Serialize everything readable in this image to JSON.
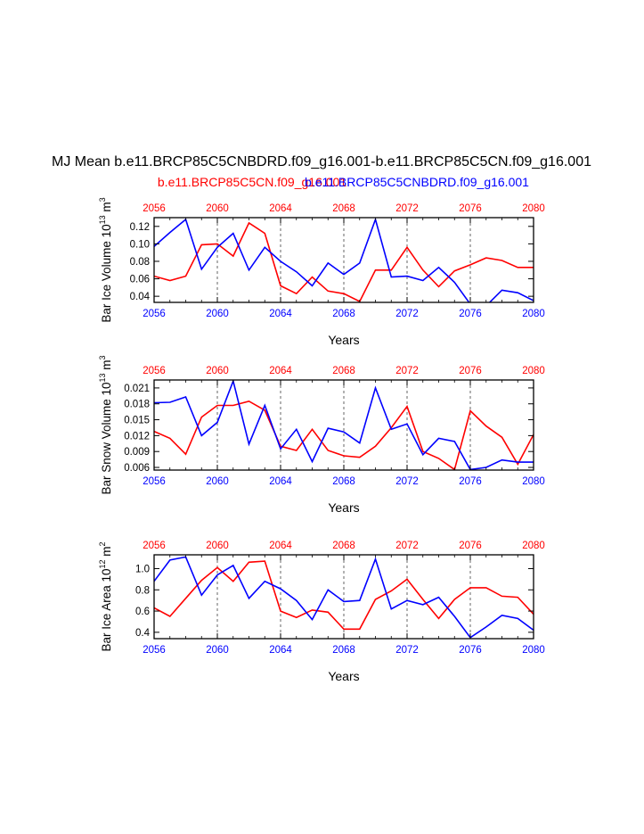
{
  "figure": {
    "title": "MJ Mean b.e11.BRCP85C5CNBDRD.f09_g16.001-b.e11.BRCP85C5CN.f09_g16.001",
    "subtitle_red": "b.e11.BRCP85C5CN.f09_g16.001",
    "subtitle_blue": "b.e11.BRCP85C5CNBDRD.f09_g16.001",
    "colors": {
      "red": "#ff0000",
      "blue": "#0000ff",
      "axis": "#000000",
      "grid": "#555555"
    }
  },
  "chart_data": [
    {
      "type": "line",
      "ylabel": {
        "text": "Bar Ice Volume 10",
        "sup": "13",
        "unit": " m",
        "unit_sup": "3"
      },
      "xlabel": "Years",
      "x_top_ticks": [
        "2056",
        "2060",
        "2064",
        "2068",
        "2072",
        "2076",
        "2080"
      ],
      "x_bottom_ticks": [
        "2056",
        "2060",
        "2064",
        "2068",
        "2072",
        "2076",
        "2080"
      ],
      "xlim": [
        2056,
        2080
      ],
      "ylim": [
        0.033,
        0.13
      ],
      "yticks": [
        0.04,
        0.06,
        0.08,
        0.1,
        0.12
      ],
      "ytick_labels": [
        "0.04",
        "0.06",
        "0.08",
        "0.10",
        "0.12"
      ],
      "grid_x": [
        2060,
        2064,
        2068,
        2072,
        2076
      ],
      "x": [
        2056,
        2057,
        2058,
        2059,
        2060,
        2061,
        2062,
        2063,
        2064,
        2065,
        2066,
        2067,
        2068,
        2069,
        2070,
        2071,
        2072,
        2073,
        2074,
        2075,
        2076,
        2077,
        2078,
        2079,
        2080
      ],
      "series": [
        {
          "name": "b.e11.BRCP85C5CN.f09_g16.001",
          "color": "red",
          "values": [
            0.063,
            0.058,
            0.063,
            0.099,
            0.1,
            0.086,
            0.124,
            0.112,
            0.052,
            0.043,
            0.062,
            0.046,
            0.043,
            0.034,
            0.07,
            0.07,
            0.096,
            0.07,
            0.051,
            0.069,
            0.076,
            0.084,
            0.081,
            0.073,
            0.073
          ]
        },
        {
          "name": "b.e11.BRCP85C5CNBDRD.f09_g16.001",
          "color": "blue",
          "values": [
            0.097,
            0.113,
            0.128,
            0.071,
            0.096,
            0.112,
            0.07,
            0.096,
            0.08,
            0.068,
            0.052,
            0.078,
            0.065,
            0.078,
            0.128,
            0.062,
            0.063,
            0.058,
            0.073,
            0.056,
            0.031,
            0.029,
            0.047,
            0.044,
            0.035
          ]
        }
      ]
    },
    {
      "type": "line",
      "ylabel": {
        "text": "Bar Snow Volume 10",
        "sup": "13",
        "unit": " m",
        "unit_sup": "3"
      },
      "xlabel": "Years",
      "x_top_ticks": [
        "2056",
        "2060",
        "2064",
        "2068",
        "2072",
        "2076",
        "2080"
      ],
      "x_bottom_ticks": [
        "2056",
        "2060",
        "2064",
        "2068",
        "2072",
        "2076",
        "2080"
      ],
      "xlim": [
        2056,
        2080
      ],
      "ylim": [
        0.0055,
        0.0225
      ],
      "yticks": [
        0.006,
        0.009,
        0.012,
        0.015,
        0.018,
        0.021
      ],
      "ytick_labels": [
        "0.006",
        "0.009",
        "0.012",
        "0.015",
        "0.018",
        "0.021"
      ],
      "grid_x": [
        2060,
        2064,
        2068,
        2072,
        2076
      ],
      "x": [
        2056,
        2057,
        2058,
        2059,
        2060,
        2061,
        2062,
        2063,
        2064,
        2065,
        2066,
        2067,
        2068,
        2069,
        2070,
        2071,
        2072,
        2073,
        2074,
        2075,
        2076,
        2077,
        2078,
        2079,
        2080
      ],
      "series": [
        {
          "name": "b.e11.BRCP85C5CN.f09_g16.001",
          "color": "red",
          "values": [
            0.0128,
            0.0115,
            0.0085,
            0.0155,
            0.0177,
            0.0177,
            0.0185,
            0.0168,
            0.01,
            0.0092,
            0.0132,
            0.0092,
            0.0082,
            0.0079,
            0.01,
            0.0135,
            0.0175,
            0.009,
            0.0077,
            0.0056,
            0.0167,
            0.0138,
            0.0117,
            0.0066,
            0.0122
          ]
        },
        {
          "name": "b.e11.BRCP85C5CNBDRD.f09_g16.001",
          "color": "blue",
          "values": [
            0.0182,
            0.0183,
            0.0193,
            0.012,
            0.0145,
            0.0223,
            0.0104,
            0.0177,
            0.0095,
            0.0132,
            0.0071,
            0.0134,
            0.0127,
            0.0106,
            0.021,
            0.0132,
            0.0142,
            0.0084,
            0.0115,
            0.0109,
            0.0056,
            0.006,
            0.0074,
            0.007,
            0.007
          ]
        }
      ]
    },
    {
      "type": "line",
      "ylabel": {
        "text": "Bar Ice Area 10",
        "sup": "12",
        "unit": " m",
        "unit_sup": "2"
      },
      "xlabel": "Years",
      "x_top_ticks": [
        "2056",
        "2060",
        "2064",
        "2068",
        "2072",
        "2076",
        "2080"
      ],
      "x_bottom_ticks": [
        "2056",
        "2060",
        "2064",
        "2068",
        "2072",
        "2076",
        "2080"
      ],
      "xlim": [
        2056,
        2080
      ],
      "ylim": [
        0.34,
        1.13
      ],
      "yticks": [
        0.4,
        0.6,
        0.8,
        1.0
      ],
      "ytick_labels": [
        "0.4",
        "0.6",
        "0.8",
        "1.0"
      ],
      "grid_x": [
        2060,
        2064,
        2068,
        2072,
        2076
      ],
      "x": [
        2056,
        2057,
        2058,
        2059,
        2060,
        2061,
        2062,
        2063,
        2064,
        2065,
        2066,
        2067,
        2068,
        2069,
        2070,
        2071,
        2072,
        2073,
        2074,
        2075,
        2076,
        2077,
        2078,
        2079,
        2080
      ],
      "series": [
        {
          "name": "b.e11.BRCP85C5CN.f09_g16.001",
          "color": "red",
          "values": [
            0.63,
            0.55,
            0.72,
            0.89,
            1.01,
            0.88,
            1.06,
            1.07,
            0.6,
            0.54,
            0.61,
            0.59,
            0.43,
            0.43,
            0.71,
            0.79,
            0.9,
            0.71,
            0.53,
            0.71,
            0.82,
            0.82,
            0.74,
            0.73,
            0.57
          ]
        },
        {
          "name": "b.e11.BRCP85C5CNBDRD.f09_g16.001",
          "color": "blue",
          "values": [
            0.88,
            1.08,
            1.11,
            0.75,
            0.94,
            1.03,
            0.72,
            0.88,
            0.81,
            0.7,
            0.52,
            0.8,
            0.69,
            0.7,
            1.09,
            0.62,
            0.7,
            0.66,
            0.73,
            0.55,
            0.35,
            0.45,
            0.56,
            0.53,
            0.42
          ]
        }
      ]
    }
  ]
}
